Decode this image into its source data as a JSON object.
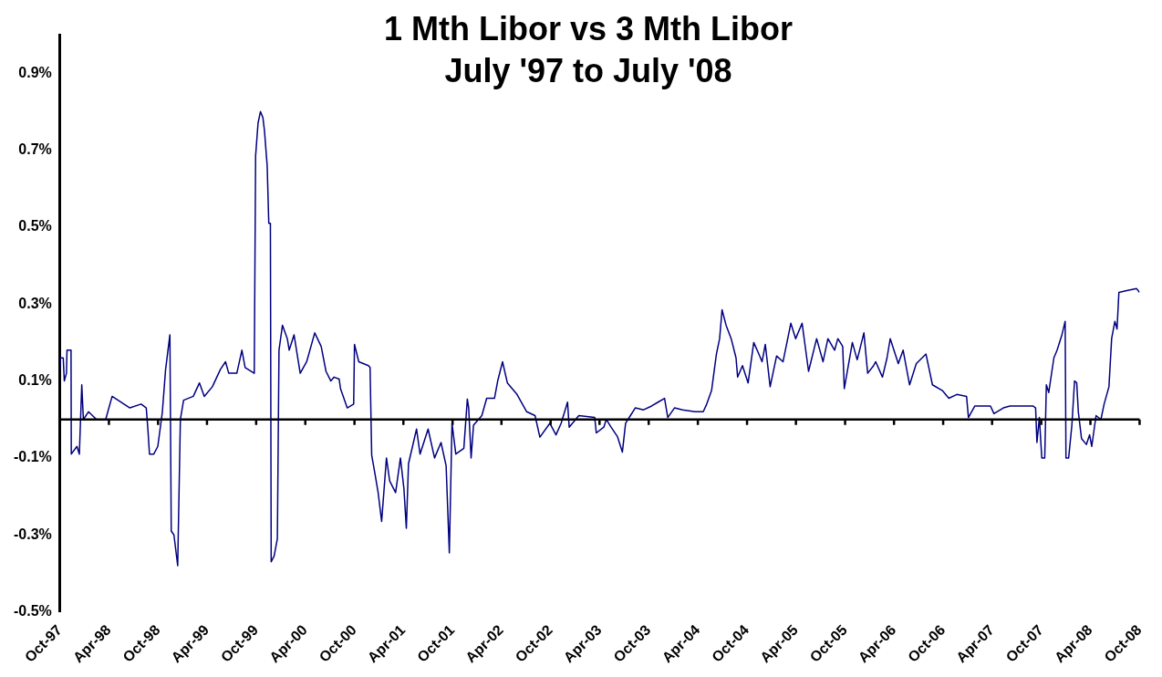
{
  "chart_data": {
    "type": "line",
    "title": "1 Mth Libor vs 3 Mth Libor\nJuly '97 to July '08",
    "x": [
      "1997-10-01",
      "1997-10-03",
      "1997-10-13",
      "1997-10-17",
      "1997-10-25",
      "1997-10-27",
      "1997-11-11",
      "1997-11-12",
      "1997-12-03",
      "1997-12-12",
      "1997-12-21",
      "1997-12-27",
      "1998-01-15",
      "1998-02-14",
      "1998-03-20",
      "1998-04-01",
      "1998-04-13",
      "1998-06-18",
      "1998-07-30",
      "1998-08-18",
      "1998-08-24",
      "1998-08-30",
      "1998-09-15",
      "1998-09-30",
      "1998-10-17",
      "1998-10-29",
      "1998-11-14",
      "1998-11-19",
      "1998-11-29",
      "1998-12-13",
      "1998-12-23",
      "1999-01-04",
      "1999-02-09",
      "1999-03-04",
      "1999-03-22",
      "1999-04-21",
      "1999-05-21",
      "1999-06-09",
      "1999-06-21",
      "1999-07-21",
      "1999-08-09",
      "1999-08-21",
      "1999-09-24",
      "1999-09-29",
      "1999-10-08",
      "1999-10-17",
      "1999-10-26",
      "1999-11-01",
      "1999-11-11",
      "1999-11-17",
      "1999-11-23",
      "1999-11-26",
      "1999-12-07",
      "1999-12-19",
      "1999-12-25",
      "2000-01-07",
      "2000-01-25",
      "2000-02-01",
      "2000-02-19",
      "2000-03-13",
      "2000-04-06",
      "2000-05-06",
      "2000-05-30",
      "2000-06-17",
      "2000-07-05",
      "2000-07-17",
      "2000-08-05",
      "2000-08-10",
      "2000-09-04",
      "2000-09-28",
      "2000-10-01",
      "2000-10-17",
      "2000-11-22",
      "2000-11-28",
      "2000-12-04",
      "2000-12-16",
      "2000-12-28",
      "2001-01-10",
      "2001-01-28",
      "2001-02-09",
      "2001-03-03",
      "2001-03-21",
      "2001-04-03",
      "2001-04-12",
      "2001-04-20",
      "2001-05-20",
      "2001-06-02",
      "2001-07-02",
      "2001-07-26",
      "2001-08-19",
      "2001-09-07",
      "2001-09-19",
      "2001-09-29",
      "2001-10-13",
      "2001-11-12",
      "2001-11-25",
      "2001-11-30",
      "2001-12-09",
      "2001-12-18",
      "2002-01-18",
      "2002-02-05",
      "2002-03-06",
      "2002-03-18",
      "2002-04-05",
      "2002-04-23",
      "2002-05-29",
      "2002-07-04",
      "2002-08-04",
      "2002-08-22",
      "2002-09-28",
      "2002-10-21",
      "2002-11-09",
      "2002-12-03",
      "2002-12-09",
      "2003-01-14",
      "2003-03-14",
      "2003-03-20",
      "2003-04-17",
      "2003-04-26",
      "2003-05-14",
      "2003-06-07",
      "2003-06-25",
      "2003-07-07",
      "2003-07-25",
      "2003-08-12",
      "2003-09-12",
      "2003-10-12",
      "2003-11-05",
      "2003-11-29",
      "2003-12-11",
      "2004-01-05",
      "2004-02-04",
      "2004-03-22",
      "2004-04-21",
      "2004-05-04",
      "2004-05-22",
      "2004-06-09",
      "2004-06-21",
      "2004-06-30",
      "2004-07-15",
      "2004-08-03",
      "2004-08-21",
      "2004-08-27",
      "2004-09-14",
      "2004-10-05",
      "2004-10-26",
      "2004-11-14",
      "2004-11-26",
      "2004-12-08",
      "2004-12-26",
      "2005-01-19",
      "2005-02-12",
      "2005-03-13",
      "2005-03-31",
      "2005-04-24",
      "2005-05-18",
      "2005-06-17",
      "2005-07-11",
      "2005-07-29",
      "2005-08-23",
      "2005-09-04",
      "2005-09-22",
      "2005-09-28",
      "2005-10-28",
      "2005-11-15",
      "2005-12-10",
      "2005-12-24",
      "2006-01-15",
      "2006-01-23",
      "2006-02-17",
      "2006-03-06",
      "2006-03-18",
      "2006-04-17",
      "2006-05-05",
      "2006-05-29",
      "2006-06-23",
      "2006-07-29",
      "2006-08-22",
      "2006-09-28",
      "2006-10-22",
      "2006-11-21",
      "2006-12-27",
      "2007-01-03",
      "2007-01-27",
      "2007-03-26",
      "2007-04-08",
      "2007-05-13",
      "2007-06-07",
      "2007-08-31",
      "2007-09-10",
      "2007-09-15",
      "2007-09-24",
      "2007-10-03",
      "2007-10-14",
      "2007-10-20",
      "2007-10-29",
      "2007-11-17",
      "2007-11-29",
      "2007-12-17",
      "2007-12-29",
      "2008-01-01",
      "2008-01-11",
      "2008-01-23",
      "2008-02-02",
      "2008-02-10",
      "2008-02-16",
      "2008-02-28",
      "2008-03-17",
      "2008-03-29",
      "2008-04-06",
      "2008-04-22",
      "2008-05-10",
      "2008-05-22",
      "2008-06-09",
      "2008-06-19",
      "2008-07-01",
      "2008-07-09",
      "2008-07-16",
      "2008-08-14",
      "2008-09-20",
      "2008-10-01"
    ],
    "series": [
      {
        "color": "#000080",
        "values": [
          0.13,
          0.16,
          0.16,
          0.1,
          0.12,
          0.18,
          0.18,
          -0.09,
          -0.07,
          -0.09,
          0.09,
          0,
          0.02,
          0,
          0,
          0.03,
          0.06,
          0.03,
          0.04,
          0.03,
          -0.025,
          -0.09,
          -0.09,
          -0.07,
          0.02,
          0.13,
          0.22,
          -0.29,
          -0.3,
          -0.38,
          0,
          0.05,
          0.06,
          0.095,
          0.06,
          0.085,
          0.13,
          0.15,
          0.12,
          0.12,
          0.18,
          0.135,
          0.12,
          0.685,
          0.77,
          0.8,
          0.785,
          0.75,
          0.66,
          0.51,
          0.51,
          -0.37,
          -0.355,
          -0.31,
          0.18,
          0.245,
          0.21,
          0.18,
          0.22,
          0.12,
          0.15,
          0.225,
          0.19,
          0.125,
          0.1,
          0.11,
          0.105,
          0.08,
          0.03,
          0.04,
          0.195,
          0.15,
          0.14,
          0.135,
          -0.093,
          -0.14,
          -0.19,
          -0.265,
          -0.1,
          -0.16,
          -0.19,
          -0.1,
          -0.18,
          -0.283,
          -0.115,
          -0.025,
          -0.09,
          -0.025,
          -0.1,
          -0.06,
          -0.12,
          -0.347,
          -0.01,
          -0.09,
          -0.075,
          0.053,
          0.03,
          -0.1,
          -0.015,
          0.01,
          0.055,
          0.055,
          0.1,
          0.15,
          0.095,
          0.065,
          0.02,
          0.01,
          -0.046,
          -0.01,
          -0.04,
          -0.01,
          0.045,
          -0.02,
          0.01,
          0.005,
          -0.035,
          -0.02,
          0,
          -0.02,
          -0.045,
          -0.085,
          -0.01,
          0.01,
          0.03,
          0.025,
          0.035,
          0.045,
          0.055,
          0.005,
          0.03,
          0.025,
          0.02,
          0.02,
          0.04,
          0.075,
          0.17,
          0.21,
          0.285,
          0.245,
          0.21,
          0.16,
          0.11,
          0.14,
          0.095,
          0.2,
          0.17,
          0.15,
          0.195,
          0.085,
          0.165,
          0.15,
          0.25,
          0.21,
          0.25,
          0.125,
          0.21,
          0.15,
          0.21,
          0.18,
          0.21,
          0.19,
          0.08,
          0.2,
          0.155,
          0.225,
          0.12,
          0.14,
          0.15,
          0.11,
          0.16,
          0.21,
          0.145,
          0.18,
          0.09,
          0.145,
          0.17,
          0.09,
          0.075,
          0.055,
          0.065,
          0.06,
          0.005,
          0.035,
          0.035,
          0.015,
          0.03,
          0.035,
          0.035,
          0.03,
          -0.06,
          0.005,
          -0.1,
          -0.1,
          0.09,
          0.07,
          0.16,
          0.18,
          0.22,
          0.255,
          -0.1,
          -0.1,
          -0.015,
          0.1,
          0.095,
          0.02,
          -0.05,
          -0.065,
          -0.04,
          -0.07,
          0.01,
          0,
          0.04,
          0.085,
          0.21,
          0.255,
          0.235,
          0.33,
          0.335,
          0.34,
          0.33
        ]
      }
    ],
    "xlim": [
      "1997-10-01",
      "2008-10-01"
    ],
    "xticks": [
      {
        "value": "1997-10-01",
        "label": "Oct-97"
      },
      {
        "value": "1998-04-01",
        "label": "Apr-98"
      },
      {
        "value": "1998-10-01",
        "label": "Oct-98"
      },
      {
        "value": "1999-04-01",
        "label": "Apr-99"
      },
      {
        "value": "1999-10-01",
        "label": "Oct-99"
      },
      {
        "value": "2000-04-01",
        "label": "Apr-00"
      },
      {
        "value": "2000-10-01",
        "label": "Oct-00"
      },
      {
        "value": "2001-04-01",
        "label": "Apr-01"
      },
      {
        "value": "2001-10-01",
        "label": "Oct-01"
      },
      {
        "value": "2002-04-01",
        "label": "Apr-02"
      },
      {
        "value": "2002-10-01",
        "label": "Oct-02"
      },
      {
        "value": "2003-04-01",
        "label": "Apr-03"
      },
      {
        "value": "2003-10-01",
        "label": "Oct-03"
      },
      {
        "value": "2004-04-01",
        "label": "Apr-04"
      },
      {
        "value": "2004-10-01",
        "label": "Oct-04"
      },
      {
        "value": "2005-04-01",
        "label": "Apr-05"
      },
      {
        "value": "2005-10-01",
        "label": "Oct-05"
      },
      {
        "value": "2006-04-01",
        "label": "Apr-06"
      },
      {
        "value": "2006-10-01",
        "label": "Oct-06"
      },
      {
        "value": "2007-04-01",
        "label": "Apr-07"
      },
      {
        "value": "2007-10-01",
        "label": "Oct-07"
      },
      {
        "value": "2008-04-01",
        "label": "Apr-08"
      },
      {
        "value": "2008-10-01",
        "label": "Oct-08"
      }
    ],
    "ylim": [
      -0.5,
      1.0
    ],
    "yticks": [
      {
        "value": -0.5,
        "label": "-0.5%"
      },
      {
        "value": -0.3,
        "label": "-0.3%"
      },
      {
        "value": -0.1,
        "label": "-0.1%"
      },
      {
        "value": 0.1,
        "label": "0.1%"
      },
      {
        "value": 0.3,
        "label": "0.3%"
      },
      {
        "value": 0.5,
        "label": "0.5%"
      },
      {
        "value": 0.7,
        "label": "0.7%"
      },
      {
        "value": 0.9,
        "label": "0.9%"
      }
    ],
    "ref_lines": [
      {
        "axis": "y",
        "value": 0,
        "color": "#000000"
      }
    ],
    "marker": "none",
    "line_style": "solid"
  }
}
